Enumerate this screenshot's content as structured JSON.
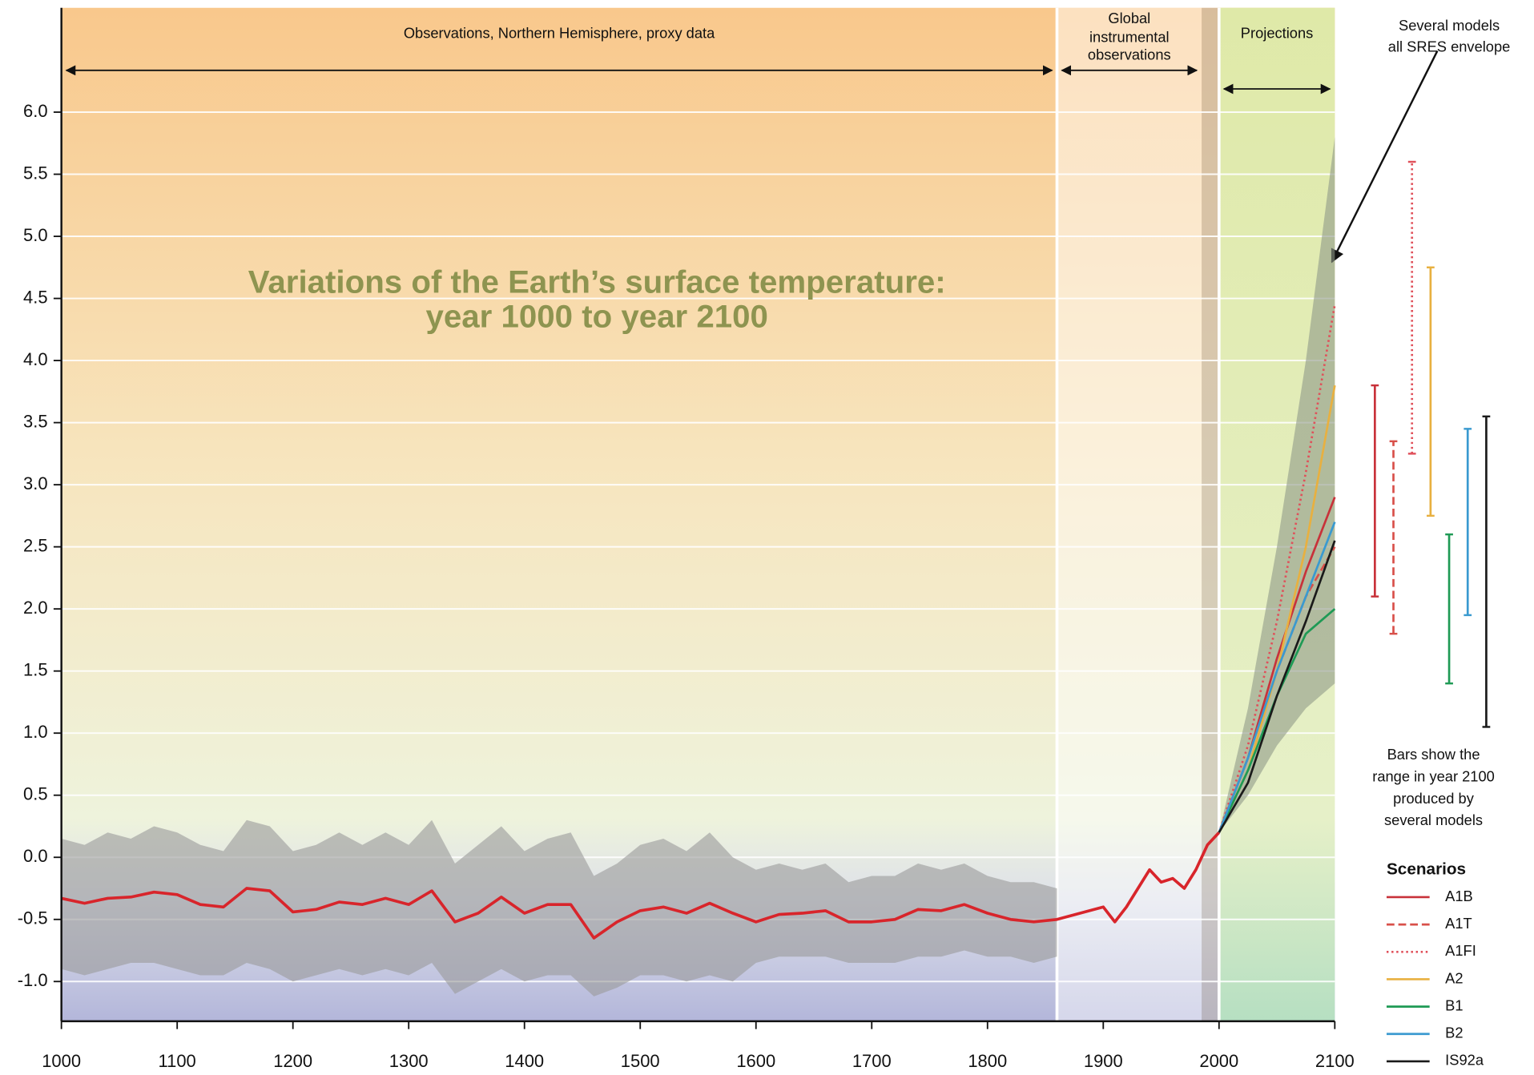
{
  "chart_data": {
    "type": "line",
    "title": [
      "Variations of the Earth’s surface temperature:",
      "year 1000 to year 2100"
    ],
    "regions": [
      {
        "label": [
          "Observations, Northern Hemisphere, proxy data"
        ],
        "from": 1000,
        "to": 1860
      },
      {
        "label": [
          "Global",
          "instrumental",
          "observations"
        ],
        "from": 1860,
        "to": 1985
      },
      {
        "label": [
          "Projections"
        ],
        "from": 2000,
        "to": 2100
      }
    ],
    "annotations": [
      [
        "Several models",
        "all SRES envelope"
      ],
      [
        "Bars show the",
        "range in year 2100",
        "produced by",
        "several models"
      ]
    ],
    "legend_title": "Scenarios",
    "xlim": [
      1000,
      2100
    ],
    "xticks": [
      1000,
      1100,
      1200,
      1300,
      1400,
      1500,
      1600,
      1700,
      1800,
      1900,
      2000,
      2100
    ],
    "ylim": [
      -1.32,
      6.84
    ],
    "yticks": [
      {
        "value": -1,
        "label": "-1.0"
      },
      -0.5,
      {
        "value": 0,
        "label": "0.0"
      },
      0.5,
      {
        "value": 1,
        "label": "1.0"
      },
      1.5,
      {
        "value": 2,
        "label": "2.0"
      },
      2.5,
      {
        "value": 3,
        "label": "3.0"
      },
      3.5,
      {
        "value": 4,
        "label": "4.0"
      },
      4.5,
      {
        "value": 5,
        "label": "5.0"
      },
      5.5,
      {
        "value": 6,
        "label": "6.0"
      }
    ],
    "grid": true,
    "bands": [
      {
        "color": "#9a9a9a",
        "x": [
          1000,
          1020,
          1040,
          1060,
          1080,
          1100,
          1120,
          1140,
          1160,
          1180,
          1200,
          1220,
          1240,
          1260,
          1280,
          1300,
          1320,
          1340,
          1360,
          1380,
          1400,
          1420,
          1440,
          1460,
          1480,
          1500,
          1520,
          1540,
          1560,
          1580,
          1600,
          1620,
          1640,
          1660,
          1680,
          1700,
          1720,
          1740,
          1760,
          1780,
          1800,
          1820,
          1840,
          1860
        ],
        "upper": [
          0.15,
          0.1,
          0.2,
          0.15,
          0.25,
          0.2,
          0.1,
          0.05,
          0.3,
          0.25,
          0.05,
          0.1,
          0.2,
          0.1,
          0.2,
          0.1,
          0.3,
          -0.05,
          0.1,
          0.25,
          0.05,
          0.15,
          0.2,
          -0.15,
          -0.05,
          0.1,
          0.15,
          0.05,
          0.2,
          0.0,
          -0.1,
          -0.05,
          -0.1,
          -0.05,
          -0.2,
          -0.15,
          -0.15,
          -0.05,
          -0.1,
          -0.05,
          -0.15,
          -0.2,
          -0.2,
          -0.25
        ],
        "lower": [
          -0.9,
          -0.95,
          -0.9,
          -0.85,
          -0.85,
          -0.9,
          -0.95,
          -0.95,
          -0.85,
          -0.9,
          -1.0,
          -0.95,
          -0.9,
          -0.95,
          -0.9,
          -0.95,
          -0.85,
          -1.1,
          -1.0,
          -0.9,
          -1.0,
          -0.95,
          -0.95,
          -1.12,
          -1.05,
          -0.95,
          -0.95,
          -1.0,
          -0.95,
          -1.0,
          -0.85,
          -0.8,
          -0.8,
          -0.8,
          -0.85,
          -0.85,
          -0.85,
          -0.8,
          -0.8,
          -0.75,
          -0.8,
          -0.8,
          -0.85,
          -0.8
        ]
      },
      {
        "color": "#8f9a88",
        "x": [
          2000,
          2025,
          2050,
          2075,
          2100
        ],
        "upper": [
          0.2,
          1.2,
          2.5,
          4.0,
          5.8
        ],
        "lower": [
          0.2,
          0.5,
          0.9,
          1.2,
          1.4
        ]
      }
    ],
    "series": [
      {
        "color": "#d8252b",
        "dash": "solid",
        "x": [
          1000,
          1020,
          1040,
          1060,
          1080,
          1100,
          1120,
          1140,
          1160,
          1180,
          1200,
          1220,
          1240,
          1260,
          1280,
          1300,
          1320,
          1340,
          1360,
          1380,
          1400,
          1420,
          1440,
          1460,
          1480,
          1500,
          1520,
          1540,
          1560,
          1580,
          1600,
          1620,
          1640,
          1660,
          1680,
          1700,
          1720,
          1740,
          1760,
          1780,
          1800,
          1820,
          1840,
          1860,
          1880,
          1900,
          1910,
          1920,
          1940,
          1950,
          1960,
          1970,
          1980,
          1990,
          2000
        ],
        "values": [
          -0.33,
          -0.37,
          -0.33,
          -0.32,
          -0.28,
          -0.3,
          -0.38,
          -0.4,
          -0.25,
          -0.27,
          -0.44,
          -0.42,
          -0.36,
          -0.38,
          -0.33,
          -0.38,
          -0.27,
          -0.52,
          -0.45,
          -0.32,
          -0.45,
          -0.38,
          -0.38,
          -0.65,
          -0.52,
          -0.43,
          -0.4,
          -0.45,
          -0.37,
          -0.45,
          -0.52,
          -0.46,
          -0.45,
          -0.43,
          -0.52,
          -0.52,
          -0.5,
          -0.42,
          -0.43,
          -0.38,
          -0.45,
          -0.5,
          -0.52,
          -0.5,
          -0.45,
          -0.4,
          -0.52,
          -0.4,
          -0.1,
          -0.2,
          -0.17,
          -0.25,
          -0.1,
          0.1,
          0.2
        ]
      },
      {
        "name": "A1B",
        "color": "#c8323a",
        "dash": "solid",
        "x": [
          2000,
          2025,
          2050,
          2075,
          2100
        ],
        "values": [
          0.2,
          0.8,
          1.6,
          2.3,
          2.9
        ],
        "range_2100": [
          2.1,
          3.8
        ]
      },
      {
        "name": "A1T",
        "color": "#d8504a",
        "dash": "dashed",
        "x": [
          2000,
          2025,
          2050,
          2075,
          2100
        ],
        "values": [
          0.2,
          0.8,
          1.5,
          2.1,
          2.5
        ],
        "range_2100": [
          1.8,
          3.35
        ]
      },
      {
        "name": "A1FI",
        "color": "#e0505a",
        "dash": "dotted",
        "x": [
          2000,
          2025,
          2050,
          2075,
          2100
        ],
        "values": [
          0.2,
          0.9,
          1.9,
          3.1,
          4.45
        ],
        "range_2100": [
          3.25,
          5.6
        ]
      },
      {
        "name": "A2",
        "color": "#e8b040",
        "dash": "solid",
        "x": [
          2000,
          2025,
          2050,
          2075,
          2100
        ],
        "values": [
          0.2,
          0.7,
          1.5,
          2.5,
          3.8
        ],
        "range_2100": [
          2.75,
          4.75
        ]
      },
      {
        "name": "B1",
        "color": "#1f9a55",
        "dash": "solid",
        "x": [
          2000,
          2025,
          2050,
          2075,
          2100
        ],
        "values": [
          0.2,
          0.7,
          1.3,
          1.8,
          2.0
        ],
        "range_2100": [
          1.4,
          2.6
        ]
      },
      {
        "name": "B2",
        "color": "#3a9ad0",
        "dash": "solid",
        "x": [
          2000,
          2025,
          2050,
          2075,
          2100
        ],
        "values": [
          0.2,
          0.8,
          1.5,
          2.1,
          2.7
        ],
        "range_2100": [
          1.95,
          3.45
        ]
      },
      {
        "name": "IS92a",
        "color": "#1a1a1a",
        "dash": "solid",
        "x": [
          2000,
          2025,
          2050,
          2075,
          2100
        ],
        "values": [
          0.2,
          0.6,
          1.3,
          1.9,
          2.55
        ],
        "range_2100": [
          1.05,
          3.55
        ]
      }
    ]
  }
}
